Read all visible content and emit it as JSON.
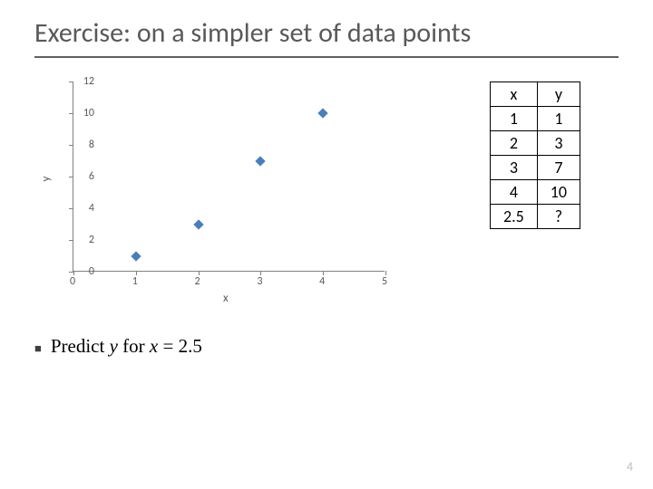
{
  "title": "Exercise: on a simpler set of data points",
  "chart": {
    "type": "scatter",
    "xlabel": "x",
    "ylabel": "y",
    "xlim": [
      0,
      5
    ],
    "ylim": [
      0,
      12
    ],
    "xtick_step": 1,
    "ytick_step": 2,
    "marker_color": "#4a7ebb",
    "axis_color": "#808080",
    "label_color": "#595959",
    "tick_fontsize": 12,
    "label_fontsize": 13,
    "points": [
      {
        "x": 1,
        "y": 1
      },
      {
        "x": 2,
        "y": 3
      },
      {
        "x": 3,
        "y": 7
      },
      {
        "x": 4,
        "y": 10
      }
    ],
    "yticks": [
      "0",
      "2",
      "4",
      "6",
      "8",
      "10",
      "12"
    ],
    "xticks": [
      "0",
      "1",
      "2",
      "3",
      "4",
      "5"
    ]
  },
  "table": {
    "columns": [
      "x",
      "y"
    ],
    "rows": [
      [
        "1",
        "1"
      ],
      [
        "2",
        "3"
      ],
      [
        "3",
        "7"
      ],
      [
        "4",
        "10"
      ],
      [
        "2.5",
        "?"
      ]
    ],
    "border_color": "#000000",
    "cell_fontsize": 18
  },
  "bullet": {
    "pre": "Predict ",
    "var1": "y",
    "mid": " for ",
    "var2": "x",
    "post": " = 2.5"
  },
  "page_number": "4"
}
